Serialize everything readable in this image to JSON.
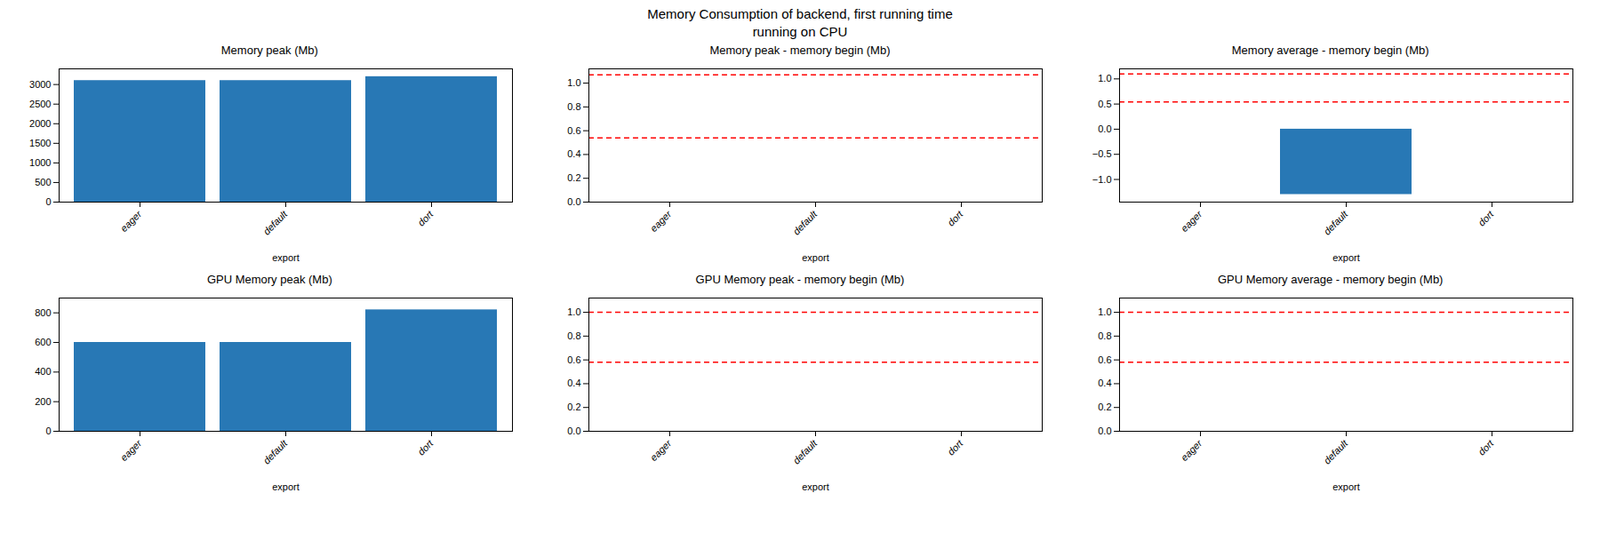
{
  "title": "Memory Consumption of backend, first running time\nrunning on CPU",
  "chart_data": [
    {
      "type": "bar",
      "title": "Memory peak (Mb)",
      "xlabel": "export",
      "categories": [
        "eager",
        "default",
        "dort"
      ],
      "values": [
        3100,
        3100,
        3200
      ],
      "color": "#2878b5",
      "ylim": [
        0,
        3400
      ],
      "yticks": [
        0,
        500,
        1000,
        1500,
        2000,
        2500,
        3000
      ],
      "grid": false
    },
    {
      "type": "hlines",
      "title": "Memory peak - memory begin (Mb)",
      "xlabel": "export",
      "categories": [
        "eager",
        "default",
        "dort"
      ],
      "hlines": {
        "values": [
          1.07,
          0.54
        ],
        "color": "red",
        "line_style": "dashed"
      },
      "ylim": [
        0.0,
        1.12
      ],
      "yticks": [
        {
          "value": 0.0,
          "label": "0.0"
        },
        0.2,
        0.4,
        0.6,
        0.8,
        {
          "value": 1.0,
          "label": "1.0"
        }
      ],
      "grid": false
    },
    {
      "type": "bar",
      "title": "Memory average - memory begin (Mb)",
      "xlabel": "export",
      "categories": [
        "eager",
        "default",
        "dort"
      ],
      "values": [
        null,
        -1.3,
        null
      ],
      "color": "#2878b5",
      "hlines": {
        "values": [
          1.1,
          0.54
        ],
        "color": "red",
        "line_style": "dashed"
      },
      "ylim": [
        -1.45,
        1.2
      ],
      "yticks": [
        {
          "value": -1.0,
          "label": "−1.0"
        },
        {
          "value": -0.5,
          "label": "−0.5"
        },
        {
          "value": 0.0,
          "label": "0.0"
        },
        0.5,
        {
          "value": 1.0,
          "label": "1.0"
        }
      ],
      "grid": false
    },
    {
      "type": "bar",
      "title": "GPU Memory peak (Mb)",
      "xlabel": "export",
      "categories": [
        "eager",
        "default",
        "dort"
      ],
      "values": [
        600,
        600,
        820
      ],
      "color": "#2878b5",
      "ylim": [
        0,
        900
      ],
      "yticks": [
        0,
        200,
        400,
        600,
        800
      ],
      "grid": false
    },
    {
      "type": "hlines",
      "title": "GPU Memory peak - memory begin (Mb)",
      "xlabel": "export",
      "categories": [
        "eager",
        "default",
        "dort"
      ],
      "hlines": {
        "values": [
          1.0,
          0.58
        ],
        "color": "red",
        "line_style": "dashed"
      },
      "ylim": [
        0.0,
        1.12
      ],
      "yticks": [
        {
          "value": 0.0,
          "label": "0.0"
        },
        0.2,
        0.4,
        0.6,
        0.8,
        {
          "value": 1.0,
          "label": "1.0"
        }
      ],
      "grid": false
    },
    {
      "type": "hlines",
      "title": "GPU Memory average - memory begin (Mb)",
      "xlabel": "export",
      "categories": [
        "eager",
        "default",
        "dort"
      ],
      "hlines": {
        "values": [
          1.0,
          0.58
        ],
        "color": "red",
        "line_style": "dashed"
      },
      "ylim": [
        0.0,
        1.12
      ],
      "yticks": [
        {
          "value": 0.0,
          "label": "0.0"
        },
        0.2,
        0.4,
        0.6,
        0.8,
        {
          "value": 1.0,
          "label": "1.0"
        }
      ],
      "grid": false
    }
  ]
}
